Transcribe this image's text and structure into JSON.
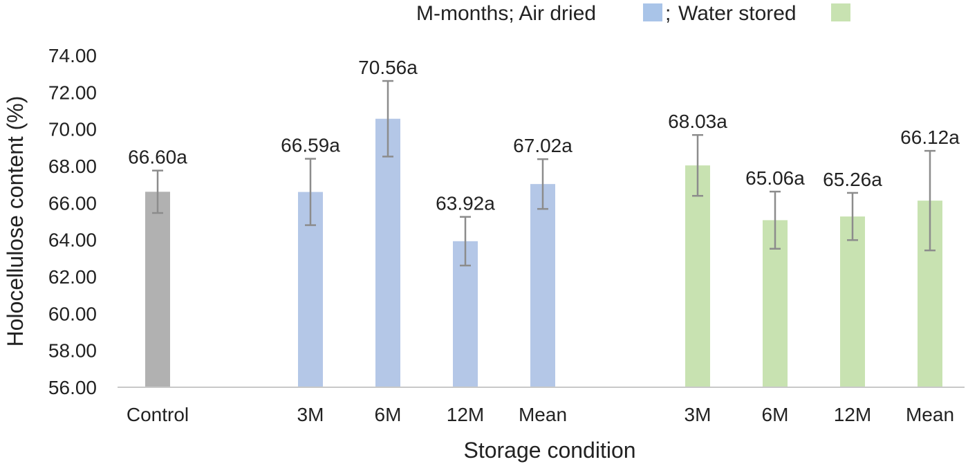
{
  "chart_data": {
    "type": "bar",
    "legend": {
      "prefix": "M-months; Air dried",
      "sep": ";",
      "items": [
        {
          "name": "Air dried",
          "color": "#a9c4e8"
        },
        {
          "name": "Water stored",
          "color": "#c8e2b1"
        }
      ],
      "water_label": "Water stored",
      "position": "top-right"
    },
    "xlabel": "Storage condition",
    "ylabel": "Holocellulose content (%)",
    "ylim": [
      56,
      74
    ],
    "yticks": [
      "56.00",
      "58.00",
      "60.00",
      "62.00",
      "64.00",
      "66.00",
      "68.00",
      "70.00",
      "72.00",
      "74.00"
    ],
    "grid": false,
    "bars": [
      {
        "category": "Control",
        "group": "control",
        "value": 66.6,
        "error": 1.15,
        "label": "66.60a",
        "color": "#b1b1b1"
      },
      {
        "category": "3M",
        "group": "air",
        "value": 66.59,
        "error": 1.8,
        "label": "66.59a",
        "color": "#b4c7e7"
      },
      {
        "category": "6M",
        "group": "air",
        "value": 70.56,
        "error": 2.05,
        "label": "70.56a",
        "color": "#b4c7e7"
      },
      {
        "category": "12M",
        "group": "air",
        "value": 63.92,
        "error": 1.32,
        "label": "63.92a",
        "color": "#b4c7e7"
      },
      {
        "category": "Mean",
        "group": "air",
        "value": 67.02,
        "error": 1.35,
        "label": "67.02a",
        "color": "#b4c7e7"
      },
      {
        "category": "3M",
        "group": "water",
        "value": 68.03,
        "error": 1.65,
        "label": "68.03a",
        "color": "#c8e2b1"
      },
      {
        "category": "6M",
        "group": "water",
        "value": 65.06,
        "error": 1.55,
        "label": "65.06a",
        "color": "#c8e2b1"
      },
      {
        "category": "12M",
        "group": "water",
        "value": 65.26,
        "error": 1.28,
        "label": "65.26a",
        "color": "#c8e2b1"
      },
      {
        "category": "Mean",
        "group": "water",
        "value": 66.12,
        "error": 2.7,
        "label": "66.12a",
        "color": "#c8e2b1"
      }
    ],
    "axis_color": "#c8c8c8",
    "error_bar_color": "#8c8c8c"
  }
}
